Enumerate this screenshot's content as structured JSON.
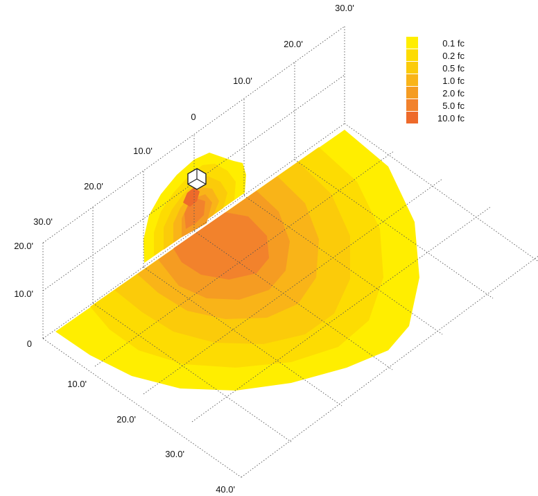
{
  "legend": {
    "items": [
      {
        "label": "0.1 fc",
        "color": "#FFEE00"
      },
      {
        "label": "0.2 fc",
        "color": "#FDDC02"
      },
      {
        "label": "0.5 fc",
        "color": "#FBCB0A"
      },
      {
        "label": "1.0 fc",
        "color": "#F9B418"
      },
      {
        "label": "2.0 fc",
        "color": "#F59C22"
      },
      {
        "label": "5.0 fc",
        "color": "#F2822C"
      },
      {
        "label": "10.0 fc",
        "color": "#EE6A2A"
      }
    ]
  },
  "axes": {
    "back_wall_top": [
      "0",
      "10.0'",
      "20.0'",
      "30.0'"
    ],
    "back_wall_left": [
      "10.0'",
      "20.0'",
      "30.0'"
    ],
    "height": [
      "0",
      "10.0'",
      "20.0'"
    ],
    "floor_depth": [
      "10.0'",
      "20.0'",
      "30.0'",
      "40.0'"
    ]
  },
  "luminaire": {
    "icon": "luminaire-cube-icon"
  },
  "colors": {
    "grid": "#555555",
    "background": "#FFFFFF"
  }
}
